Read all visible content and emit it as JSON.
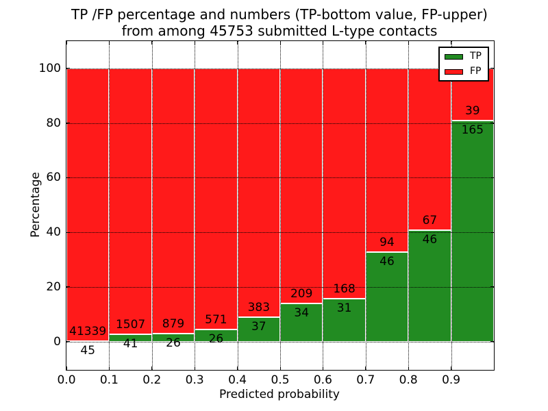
{
  "title": {
    "line1": "TP /FP percentage and numbers (TP-bottom value, FP-upper)",
    "line2": "from among 45753 submitted L-type contacts"
  },
  "axes": {
    "xlabel": "Predicted probability",
    "ylabel": "Percentage"
  },
  "legend": {
    "position": "upper right",
    "entries": [
      {
        "label": "TP",
        "color": "#228B22"
      },
      {
        "label": "FP",
        "color": "#ff1a1a"
      }
    ]
  },
  "chart_data": {
    "type": "bar",
    "stacked": true,
    "stack_total_percent": 100,
    "title": "TP /FP percentage and numbers (TP-bottom value, FP-upper) from among 45753 submitted L-type contacts",
    "xlabel": "Predicted probability",
    "ylabel": "Percentage",
    "xlim": [
      0.0,
      1.0
    ],
    "ylim": [
      -10.4,
      110
    ],
    "bin_width": 0.1,
    "xtick_labels": [
      "0.0",
      "0.1",
      "0.2",
      "0.3",
      "0.4",
      "0.5",
      "0.6",
      "0.7",
      "0.8",
      "0.9"
    ],
    "ytick_values": [
      0,
      20,
      40,
      60,
      80,
      100
    ],
    "grid": "dotted",
    "total_contacts": 45753,
    "series": [
      {
        "name": "TP",
        "color": "#228B22",
        "counts": [
          45,
          41,
          26,
          26,
          37,
          34,
          31,
          46,
          46,
          165
        ]
      },
      {
        "name": "FP",
        "color": "#ff1a1a",
        "counts": [
          41339,
          1507,
          879,
          571,
          383,
          209,
          168,
          94,
          67,
          39
        ]
      }
    ],
    "tp_percent": [
      0.11,
      2.65,
      2.87,
      4.36,
      8.81,
      13.99,
      15.58,
      32.86,
      40.71,
      80.88
    ]
  }
}
